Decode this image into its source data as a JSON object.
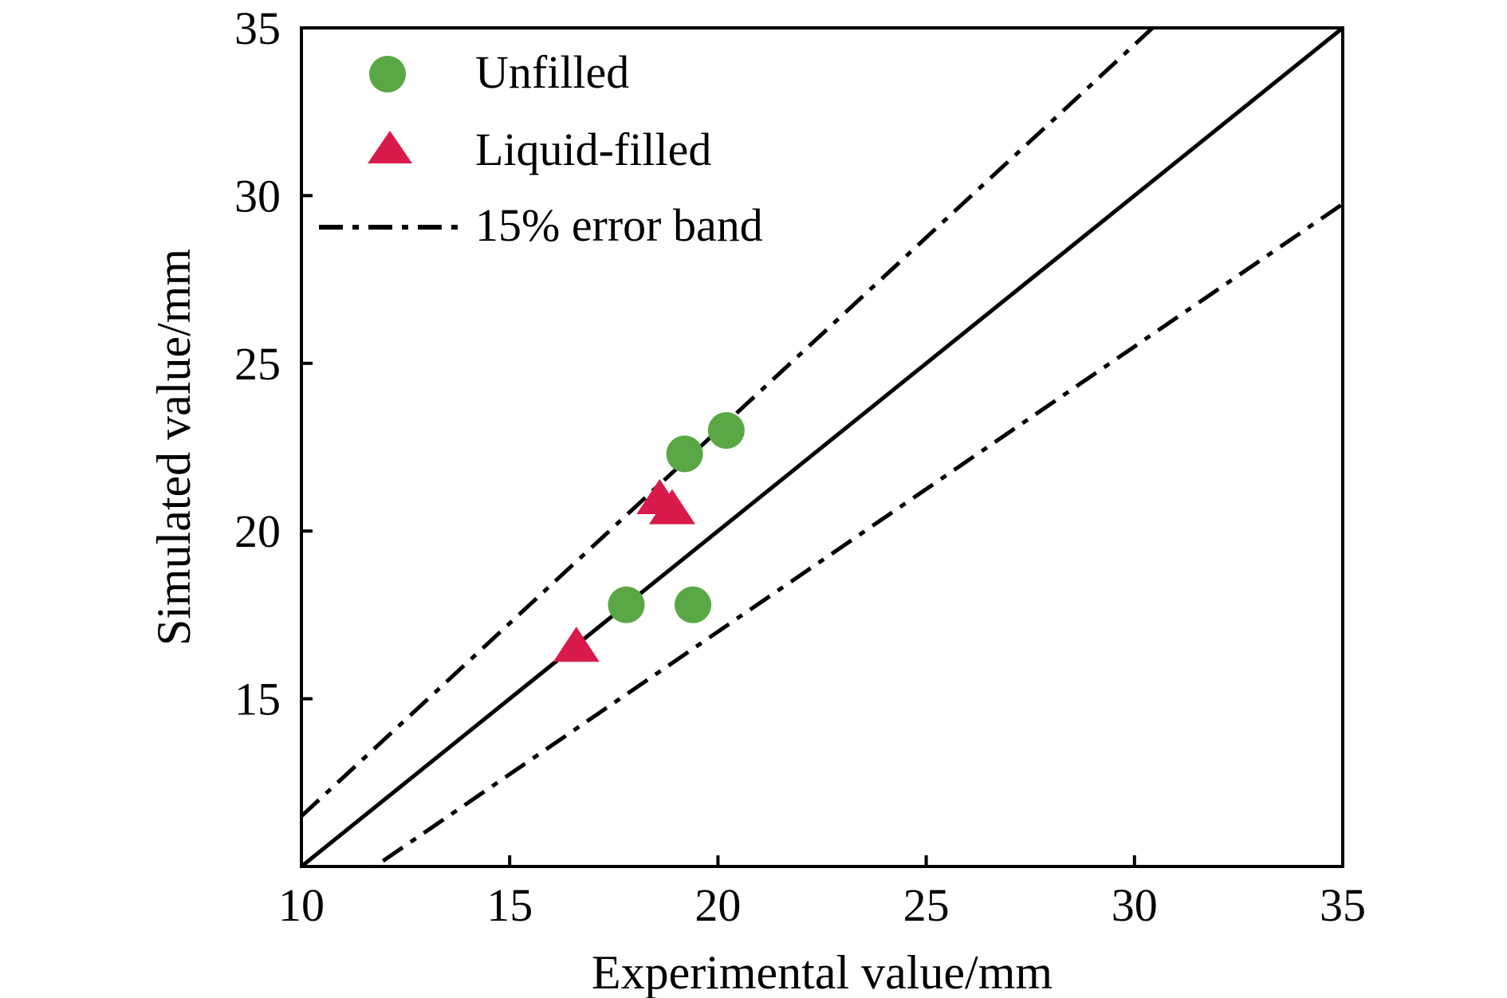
{
  "chart_data": {
    "type": "scatter",
    "xlabel": "Experimental value/mm",
    "ylabel": "Simulated value/mm",
    "xlim": [
      10,
      35
    ],
    "ylim": [
      10,
      35
    ],
    "x_ticks": [
      "10",
      "15",
      "20",
      "25",
      "30",
      "35"
    ],
    "y_ticks": [
      "15",
      "20",
      "25",
      "30",
      "35"
    ],
    "grid": false,
    "legend_placement": "top-left",
    "series": [
      {
        "name": "Unfilled",
        "marker": "circle",
        "color": "#5aa845",
        "points": [
          {
            "x": 17.8,
            "y": 17.8
          },
          {
            "x": 19.4,
            "y": 17.8
          },
          {
            "x": 19.2,
            "y": 22.3
          },
          {
            "x": 20.2,
            "y": 23.0
          }
        ]
      },
      {
        "name": "Liquid-filled",
        "marker": "triangle",
        "color": "#d81b4a",
        "points": [
          {
            "x": 16.6,
            "y": 16.5
          },
          {
            "x": 18.6,
            "y": 20.9
          },
          {
            "x": 18.9,
            "y": 20.6
          }
        ]
      }
    ],
    "reference_lines": [
      {
        "name": "y = x",
        "style": "solid",
        "slope": 1.0
      },
      {
        "name": "15% error band",
        "style": "dash-dot",
        "slope": 1.15
      },
      {
        "name": "15% error band",
        "style": "dash-dot",
        "slope": 0.85
      }
    ],
    "legend": [
      {
        "label": "Unfilled",
        "symbol": "circle"
      },
      {
        "label": "Liquid-filled",
        "symbol": "triangle"
      },
      {
        "label": "15% error band",
        "symbol": "dash-dot"
      }
    ]
  }
}
